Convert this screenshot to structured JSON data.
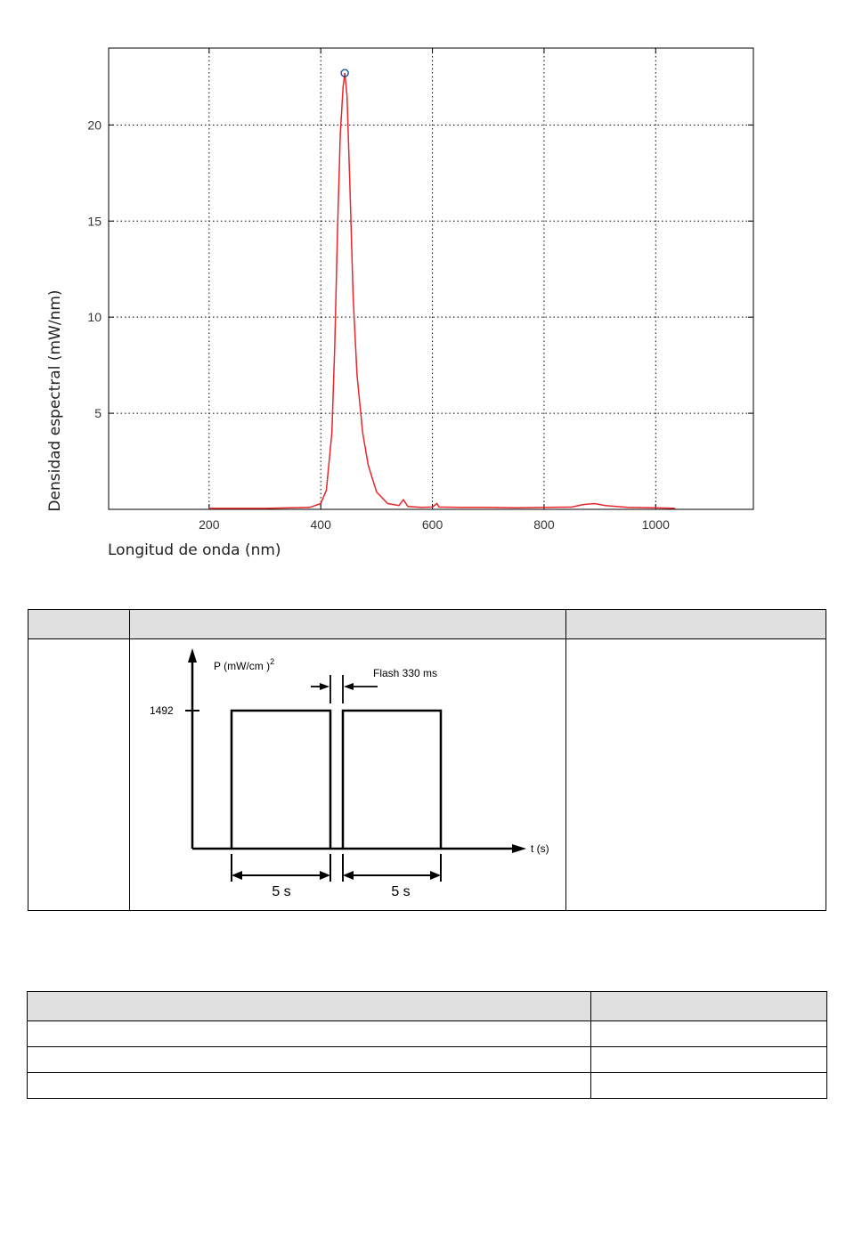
{
  "chart_data": {
    "type": "line",
    "xlabel": "Longitud de onda (nm)",
    "ylabel": "Densidad espectral (mW/nm)",
    "xlim": [
      20,
      1175
    ],
    "ylim": [
      0,
      24
    ],
    "xticks": [
      200,
      400,
      600,
      800,
      1000
    ],
    "yticks": [
      5,
      10,
      15,
      20
    ],
    "grid": true,
    "colors": {
      "line": "#e8262b",
      "marker": "#1f4e9a"
    },
    "peak_marker": {
      "x": 443,
      "y": 22.7
    },
    "series": [
      {
        "x": [
          200,
          300,
          380,
          400,
          410,
          420,
          425,
          430,
          435,
          440,
          443,
          447,
          452,
          458,
          465,
          475,
          485,
          500,
          520,
          540,
          548,
          556,
          580,
          600,
          608,
          612,
          650,
          700,
          750,
          800,
          850,
          870,
          890,
          910,
          950,
          1000,
          1035
        ],
        "y": [
          0.05,
          0.05,
          0.1,
          0.3,
          1.0,
          4.0,
          8.5,
          14.5,
          19.5,
          22.0,
          22.7,
          21.5,
          17.0,
          11.0,
          7.0,
          4.0,
          2.3,
          0.9,
          0.3,
          0.2,
          0.5,
          0.15,
          0.1,
          0.12,
          0.3,
          0.12,
          0.1,
          0.1,
          0.08,
          0.1,
          0.12,
          0.25,
          0.3,
          0.2,
          0.1,
          0.08,
          0.05
        ]
      }
    ]
  },
  "pulse_diagram": {
    "y_axis_label": "P (mW/cm )",
    "y_axis_superscript": "2",
    "level_label": "1492",
    "flash_label": "Flash 330 ms",
    "x_axis_label": "t (s)",
    "duration_1": "5 s",
    "duration_2": "5 s"
  },
  "table1": {
    "headers": [
      "",
      "",
      ""
    ],
    "rows": [
      [
        "",
        "",
        ""
      ]
    ]
  },
  "table2": {
    "headers": [
      "",
      ""
    ],
    "rows": [
      [
        "",
        ""
      ],
      [
        "",
        ""
      ],
      [
        "",
        ""
      ]
    ]
  }
}
